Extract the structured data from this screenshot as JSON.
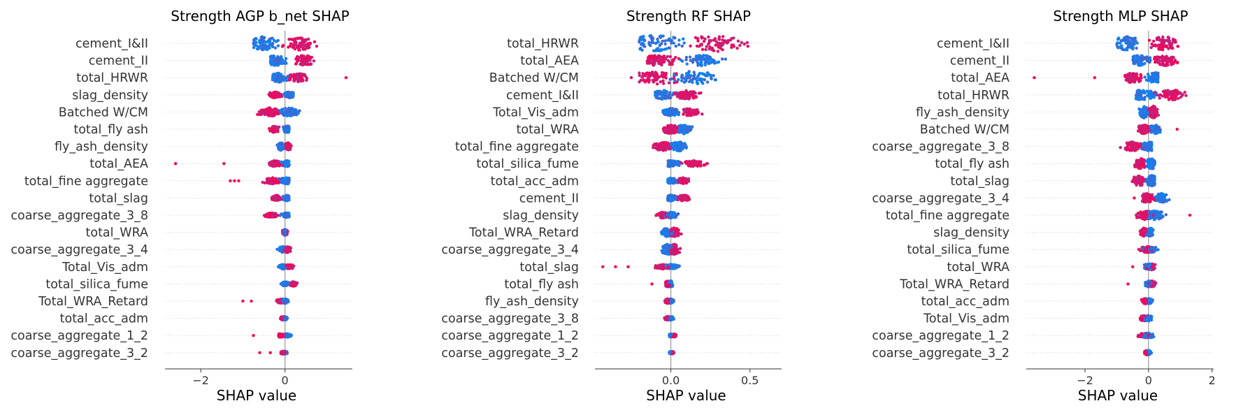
{
  "chart_data": [
    {
      "type": "scatter",
      "subtype": "shap_beeswarm",
      "title": "Strength AGP b_net SHAP",
      "xlabel": "SHAP value",
      "xlim": [
        -2.85,
        1.6
      ],
      "xticks": [
        -2,
        0
      ],
      "xtick_labels": [
        "−2",
        "0"
      ],
      "features": [
        "cement_I&II",
        "cement_II",
        "total_HRWR",
        "slag_density",
        "Batched W/CM",
        "total_fly ash",
        "fly_ash_density",
        "total_AEA",
        "total_fine aggregate",
        "total_slag",
        "coarse_aggregate_3_8",
        "total_WRA",
        "coarse_aggregate_3_4",
        "Total_Vis_adm",
        "total_silica_fume",
        "Total_WRA_Retard",
        "total_acc_adm",
        "coarse_aggregate_1_2",
        "coarse_aggregate_3_2"
      ],
      "distributions": [
        {
          "min": -0.75,
          "max": 0.8,
          "blue_center": -0.5,
          "red_center": 0.35,
          "width": 0.45,
          "outliers": []
        },
        {
          "min": -0.35,
          "max": 0.85,
          "blue_center": -0.2,
          "red_center": 0.45,
          "width": 0.35,
          "outliers": []
        },
        {
          "min": -0.3,
          "max": 0.6,
          "blue_center": -0.15,
          "red_center": 0.3,
          "width": 0.3,
          "outliers": [
            1.45
          ]
        },
        {
          "min": -0.45,
          "max": 0.2,
          "blue_center": 0.1,
          "red_center": -0.25,
          "width": 0.2,
          "outliers": []
        },
        {
          "min": -0.8,
          "max": 0.35,
          "blue_center": 0.1,
          "red_center": -0.35,
          "width": 0.28,
          "outliers": []
        },
        {
          "min": -0.45,
          "max": 0.1,
          "blue_center": 0.05,
          "red_center": -0.25,
          "width": 0.22,
          "outliers": []
        },
        {
          "min": -0.2,
          "max": 0.15,
          "blue_center": -0.1,
          "red_center": 0.08,
          "width": 0.25,
          "outliers": []
        },
        {
          "min": -0.65,
          "max": 0.1,
          "blue_center": 0.05,
          "red_center": -0.25,
          "width": 0.2,
          "outliers": [
            -2.6,
            -1.45
          ]
        },
        {
          "min": -0.9,
          "max": 0.1,
          "blue_center": 0.05,
          "red_center": -0.3,
          "width": 0.2,
          "outliers": [
            -1.3,
            -1.2,
            -1.1
          ]
        },
        {
          "min": -0.4,
          "max": 0.1,
          "blue_center": 0.05,
          "red_center": -0.2,
          "width": 0.18,
          "outliers": []
        },
        {
          "min": -0.65,
          "max": 0.1,
          "blue_center": 0.05,
          "red_center": -0.3,
          "width": 0.15,
          "outliers": []
        },
        {
          "min": -0.15,
          "max": 0.1,
          "blue_center": 0.0,
          "red_center": 0.0,
          "width": 0.2,
          "outliers": []
        },
        {
          "min": -0.3,
          "max": 0.15,
          "blue_center": -0.05,
          "red_center": 0.05,
          "width": 0.2,
          "outliers": []
        },
        {
          "min": -0.2,
          "max": 0.25,
          "blue_center": -0.05,
          "red_center": 0.1,
          "width": 0.15,
          "outliers": []
        },
        {
          "min": -0.1,
          "max": 0.3,
          "blue_center": 0.0,
          "red_center": 0.2,
          "width": 0.15,
          "outliers": []
        },
        {
          "min": -0.35,
          "max": 0.1,
          "blue_center": 0.0,
          "red_center": -0.1,
          "width": 0.15,
          "outliers": [
            -1.0,
            -0.8
          ]
        },
        {
          "min": -0.15,
          "max": 0.1,
          "blue_center": 0.0,
          "red_center": -0.05,
          "width": 0.12,
          "outliers": []
        },
        {
          "min": -0.15,
          "max": 0.35,
          "blue_center": 0.05,
          "red_center": -0.1,
          "width": 0.12,
          "outliers": [
            -0.75
          ]
        },
        {
          "min": -0.1,
          "max": 0.1,
          "blue_center": 0.0,
          "red_center": -0.05,
          "width": 0.1,
          "outliers": [
            -0.6,
            -0.35
          ]
        }
      ]
    },
    {
      "type": "scatter",
      "subtype": "shap_beeswarm",
      "title": "Strength RF SHAP",
      "xlabel": "SHAP value",
      "xlim": [
        -0.48,
        0.7
      ],
      "xticks": [
        0.0,
        0.5
      ],
      "xtick_labels": [
        "0.0",
        "0.5"
      ],
      "features": [
        "total_HRWR",
        "total_AEA",
        "Batched W/CM",
        "cement_I&II",
        "Total_Vis_adm",
        "total_WRA",
        "total_fine aggregate",
        "total_silica_fume",
        "total_acc_adm",
        "cement_II",
        "slag_density",
        "Total_WRA_Retard",
        "coarse_aggregate_3_4",
        "total_slag",
        "total_fly ash",
        "fly_ash_density",
        "coarse_aggregate_3_8",
        "coarse_aggregate_1_2",
        "coarse_aggregate_3_2"
      ],
      "distributions": [
        {
          "min": -0.2,
          "max": 0.62,
          "blue_center": -0.1,
          "red_center": 0.3,
          "width": 0.55,
          "outliers": []
        },
        {
          "min": -0.15,
          "max": 0.42,
          "blue_center": 0.2,
          "red_center": -0.08,
          "width": 0.35,
          "outliers": []
        },
        {
          "min": -0.25,
          "max": 0.45,
          "blue_center": 0.15,
          "red_center": -0.1,
          "width": 0.45,
          "outliers": []
        },
        {
          "min": -0.1,
          "max": 0.2,
          "blue_center": -0.05,
          "red_center": 0.1,
          "width": 0.3,
          "outliers": []
        },
        {
          "min": -0.05,
          "max": 0.22,
          "blue_center": 0.0,
          "red_center": 0.12,
          "width": 0.25,
          "outliers": []
        },
        {
          "min": -0.05,
          "max": 0.18,
          "blue_center": 0.08,
          "red_center": 0.0,
          "width": 0.3,
          "outliers": []
        },
        {
          "min": -0.15,
          "max": 0.12,
          "blue_center": 0.05,
          "red_center": -0.05,
          "width": 0.3,
          "outliers": []
        },
        {
          "min": -0.02,
          "max": 0.3,
          "blue_center": 0.0,
          "red_center": 0.15,
          "width": 0.2,
          "outliers": []
        },
        {
          "min": -0.02,
          "max": 0.15,
          "blue_center": 0.0,
          "red_center": 0.08,
          "width": 0.2,
          "outliers": []
        },
        {
          "min": -0.02,
          "max": 0.15,
          "blue_center": 0.0,
          "red_center": 0.08,
          "width": 0.2,
          "outliers": []
        },
        {
          "min": -0.12,
          "max": 0.05,
          "blue_center": 0.0,
          "red_center": -0.05,
          "width": 0.2,
          "outliers": []
        },
        {
          "min": -0.1,
          "max": 0.07,
          "blue_center": -0.02,
          "red_center": 0.02,
          "width": 0.3,
          "outliers": []
        },
        {
          "min": -0.1,
          "max": 0.07,
          "blue_center": -0.02,
          "red_center": 0.02,
          "width": 0.35,
          "outliers": []
        },
        {
          "min": -0.15,
          "max": 0.07,
          "blue_center": 0.0,
          "red_center": -0.05,
          "width": 0.15,
          "outliers": [
            -0.43,
            -0.35,
            -0.27
          ]
        },
        {
          "min": -0.05,
          "max": 0.03,
          "blue_center": 0.0,
          "red_center": -0.02,
          "width": 0.2,
          "outliers": [
            -0.12
          ]
        },
        {
          "min": -0.05,
          "max": 0.03,
          "blue_center": 0.0,
          "red_center": -0.02,
          "width": 0.15,
          "outliers": []
        },
        {
          "min": -0.05,
          "max": 0.03,
          "blue_center": 0.0,
          "red_center": -0.02,
          "width": 0.12,
          "outliers": []
        },
        {
          "min": -0.01,
          "max": 0.05,
          "blue_center": 0.0,
          "red_center": 0.02,
          "width": 0.1,
          "outliers": []
        },
        {
          "min": -0.01,
          "max": 0.03,
          "blue_center": 0.0,
          "red_center": 0.01,
          "width": 0.08,
          "outliers": []
        }
      ]
    },
    {
      "type": "scatter",
      "subtype": "shap_beeswarm",
      "title": "Strength MLP SHAP",
      "xlabel": "SHAP value",
      "xlim": [
        -3.85,
        2.05
      ],
      "xticks": [
        -2,
        0,
        2
      ],
      "xtick_labels": [
        "−2",
        "0",
        "2"
      ],
      "features": [
        "cement_I&II",
        "cement_II",
        "total_AEA",
        "total_HRWR",
        "fly_ash_density",
        "Batched W/CM",
        "coarse_aggregate_3_8",
        "total_fly ash",
        "total_slag",
        "coarse_aggregate_3_4",
        "total_fine aggregate",
        "slag_density",
        "total_silica_fume",
        "total_WRA",
        "Total_WRA_Retard",
        "total_acc_adm",
        "Total_Vis_adm",
        "coarse_aggregate_1_2",
        "coarse_aggregate_3_2"
      ],
      "distributions": [
        {
          "min": -1.0,
          "max": 1.0,
          "blue_center": -0.7,
          "red_center": 0.5,
          "width": 0.45,
          "outliers": []
        },
        {
          "min": -0.5,
          "max": 1.1,
          "blue_center": -0.3,
          "red_center": 0.55,
          "width": 0.35,
          "outliers": []
        },
        {
          "min": -1.0,
          "max": 0.3,
          "blue_center": 0.2,
          "red_center": -0.5,
          "width": 0.35,
          "outliers": [
            -3.6,
            -1.7
          ]
        },
        {
          "min": -0.4,
          "max": 1.7,
          "blue_center": -0.2,
          "red_center": 0.7,
          "width": 0.35,
          "outliers": []
        },
        {
          "min": -0.3,
          "max": 0.35,
          "blue_center": -0.15,
          "red_center": 0.15,
          "width": 0.4,
          "outliers": []
        },
        {
          "min": -0.4,
          "max": 0.5,
          "blue_center": 0.2,
          "red_center": -0.15,
          "width": 0.3,
          "outliers": [
            0.9
          ]
        },
        {
          "min": -1.3,
          "max": 0.1,
          "blue_center": 0.05,
          "red_center": -0.5,
          "width": 0.3,
          "outliers": []
        },
        {
          "min": -0.6,
          "max": 0.2,
          "blue_center": 0.1,
          "red_center": -0.25,
          "width": 0.35,
          "outliers": []
        },
        {
          "min": -0.7,
          "max": 0.2,
          "blue_center": 0.1,
          "red_center": -0.3,
          "width": 0.35,
          "outliers": []
        },
        {
          "min": -0.2,
          "max": 0.9,
          "blue_center": 0.4,
          "red_center": -0.05,
          "width": 0.3,
          "outliers": [
            -0.45
          ]
        },
        {
          "min": -0.7,
          "max": 0.55,
          "blue_center": 0.2,
          "red_center": -0.1,
          "width": 0.3,
          "outliers": [
            1.3
          ]
        },
        {
          "min": -0.35,
          "max": 0.15,
          "blue_center": 0.05,
          "red_center": -0.15,
          "width": 0.3,
          "outliers": []
        },
        {
          "min": -0.6,
          "max": 0.5,
          "blue_center": 0.05,
          "red_center": -0.05,
          "width": 0.2,
          "outliers": []
        },
        {
          "min": -0.25,
          "max": 0.4,
          "blue_center": 0.0,
          "red_center": 0.1,
          "width": 0.2,
          "outliers": [
            -0.5
          ]
        },
        {
          "min": -0.2,
          "max": 0.3,
          "blue_center": 0.0,
          "red_center": 0.1,
          "width": 0.2,
          "outliers": [
            -0.65
          ]
        },
        {
          "min": -0.35,
          "max": 0.15,
          "blue_center": 0.0,
          "red_center": -0.1,
          "width": 0.18,
          "outliers": []
        },
        {
          "min": -0.45,
          "max": 0.1,
          "blue_center": 0.0,
          "red_center": -0.15,
          "width": 0.18,
          "outliers": []
        },
        {
          "min": -0.6,
          "max": 0.4,
          "blue_center": 0.0,
          "red_center": -0.1,
          "width": 0.15,
          "outliers": []
        },
        {
          "min": -0.25,
          "max": 0.1,
          "blue_center": 0.0,
          "red_center": -0.05,
          "width": 0.15,
          "outliers": []
        }
      ]
    }
  ],
  "colors": {
    "low": "#008afb",
    "high": "#ff0052",
    "zero_line": "#999999",
    "axis": "#333333",
    "row_line": "#cccccc"
  }
}
